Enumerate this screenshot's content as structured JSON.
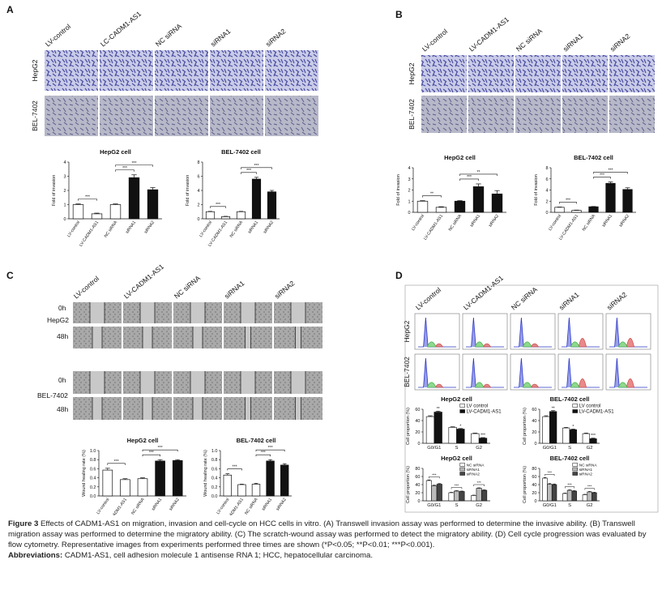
{
  "panels": [
    {
      "label": "A",
      "columns": [
        "LV-control",
        "LC-CADM1-AS1",
        "NC siRNA",
        "siRNA1",
        "siRNA2"
      ],
      "rows": [
        "HepG2",
        "BEL-7402"
      ]
    },
    {
      "label": "B",
      "columns": [
        "LV-control",
        "LV-CADM1-AS1",
        "NC siRNA",
        "siRNA1",
        "siRNA2"
      ],
      "rows": [
        "HepG2",
        "BEL-7402"
      ]
    },
    {
      "label": "C",
      "columns": [
        "LV-control",
        "LV-CADM1-AS1",
        "NC siRNA",
        "siRNA1",
        "siRNA2"
      ],
      "rows": [
        "0h",
        "HepG2",
        "48h",
        "0h",
        "BEL-7402",
        "48h"
      ]
    },
    {
      "label": "D",
      "columns": [
        "LV-control",
        "LV-CADM1-AS1",
        "NC siRNA",
        "siRNA1",
        "siRNA2"
      ],
      "rows": [
        "HepG2",
        "BEL-7402"
      ]
    }
  ],
  "chart_data": [
    {
      "type": "bar",
      "title": "HepG2 cell",
      "ylabel": "Fold of invasion",
      "categories": [
        "LV-control",
        "LV-CADM1-AS1",
        "NC siRNA",
        "siRNA1",
        "siRNA2"
      ],
      "values": [
        1,
        0.35,
        1,
        2.9,
        2.05
      ],
      "errors": [
        0.05,
        0.05,
        0.05,
        0.2,
        0.15
      ],
      "colors": [
        "#ffffff",
        "#ffffff",
        "#ffffff",
        "#111111",
        "#111111"
      ],
      "ylim": [
        0,
        4
      ],
      "yticks": [
        0,
        1,
        2,
        3,
        4
      ],
      "annotations": [
        "***",
        "***",
        "***"
      ]
    },
    {
      "type": "bar",
      "title": "BEL-7402 cell",
      "ylabel": "Fold of invasion",
      "categories": [
        "LV-control",
        "LV-CADM1-AS1",
        "NC siRNA",
        "siRNA1",
        "siRNA2"
      ],
      "values": [
        1,
        0.3,
        1,
        5.6,
        3.8
      ],
      "errors": [
        0.05,
        0.05,
        0.05,
        0.25,
        0.2
      ],
      "colors": [
        "#ffffff",
        "#ffffff",
        "#ffffff",
        "#111111",
        "#111111"
      ],
      "ylim": [
        0,
        8
      ],
      "yticks": [
        0,
        2,
        4,
        6,
        8
      ],
      "annotations": [
        "***",
        "***",
        "***"
      ]
    },
    {
      "type": "bar",
      "title": "HepG2 cell",
      "ylabel": "Fold of invasion",
      "categories": [
        "LV-control",
        "LV-CADM1-AS1",
        "NC siRNA",
        "siRNA1",
        "siRNA2"
      ],
      "values": [
        1,
        0.45,
        1,
        2.3,
        1.65
      ],
      "errors": [
        0.05,
        0.05,
        0.05,
        0.25,
        0.3
      ],
      "colors": [
        "#ffffff",
        "#ffffff",
        "#111111",
        "#111111",
        "#111111"
      ],
      "ylim": [
        0,
        4
      ],
      "yticks": [
        0,
        1,
        2,
        3,
        4
      ],
      "annotations": [
        "**",
        "***",
        "**"
      ]
    },
    {
      "type": "bar",
      "title": "BEL-7402 cell",
      "ylabel": "Fold of invasion",
      "categories": [
        "LV-control",
        "LV-CADM1-AS1",
        "NC siRNA",
        "siRNA1",
        "siRNA2"
      ],
      "values": [
        0.9,
        0.35,
        1,
        5.2,
        4.1
      ],
      "errors": [
        0.05,
        0.05,
        0.05,
        0.25,
        0.3
      ],
      "colors": [
        "#ffffff",
        "#ffffff",
        "#111111",
        "#111111",
        "#111111"
      ],
      "ylim": [
        0,
        8
      ],
      "yticks": [
        0,
        2,
        4,
        6,
        8
      ],
      "annotations": [
        "***",
        "***",
        "***"
      ]
    },
    {
      "type": "bar",
      "title": "HepG2 cell",
      "ylabel": "Wound healing rate (%)",
      "categories": [
        "LV-control",
        "LV-CADM1-AS1",
        "NC siRNA",
        "siRNA1",
        "siRNA2"
      ],
      "values": [
        0.57,
        0.36,
        0.38,
        0.77,
        0.78
      ],
      "errors": [
        0.04,
        0.02,
        0.02,
        0.03,
        0.02
      ],
      "colors": [
        "#ffffff",
        "#ffffff",
        "#ffffff",
        "#111111",
        "#111111"
      ],
      "ylim": [
        0,
        1.0
      ],
      "yticks": [
        {
          "value": 0,
          "label": "0.0"
        },
        0.2,
        0.4,
        0.6,
        0.8,
        {
          "value": 1.0,
          "label": "1.0"
        }
      ],
      "annotations": [
        "***",
        "***",
        "***"
      ]
    },
    {
      "type": "bar",
      "title": "BEL-7402 cell",
      "ylabel": "Wound healing rate (%)",
      "categories": [
        "LV-control",
        "LV-CADM1-AS1",
        "NC siRNA",
        "siRNA1",
        "siRNA2"
      ],
      "values": [
        0.46,
        0.25,
        0.26,
        0.77,
        0.68
      ],
      "errors": [
        0.03,
        0.01,
        0.02,
        0.03,
        0.03
      ],
      "colors": [
        "#ffffff",
        "#ffffff",
        "#ffffff",
        "#111111",
        "#111111"
      ],
      "ylim": [
        0,
        1.0
      ],
      "yticks": [
        {
          "value": 0,
          "label": "0.0"
        },
        0.2,
        0.4,
        0.6,
        0.8,
        {
          "value": 1.0,
          "label": "1.0"
        }
      ],
      "annotations": [
        "***",
        "***",
        "***"
      ]
    },
    {
      "type": "grouped-bar",
      "title": "HepG2 cell",
      "ylabel": "Cell proportion (%)",
      "categories": [
        "G0/G1",
        "S",
        "G2"
      ],
      "series": [
        {
          "name": "LV control",
          "color": "#ffffff",
          "values": [
            47,
            28,
            17
          ],
          "errors": [
            1.5,
            1,
            1
          ]
        },
        {
          "name": "LV-CADM1-AS1",
          "color": "#111111",
          "values": [
            55,
            25,
            9
          ],
          "errors": [
            1.5,
            1,
            1
          ]
        }
      ],
      "ylim": [
        0,
        60
      ],
      "yticks": [
        0,
        20,
        40,
        60
      ],
      "annotations": [
        "**",
        "*",
        "***"
      ]
    },
    {
      "type": "grouped-bar",
      "title": "BEL-7402 cell",
      "ylabel": "Cell proportion (%)",
      "categories": [
        "G0/G1",
        "S",
        "G2"
      ],
      "series": [
        {
          "name": "LV control",
          "color": "#ffffff",
          "values": [
            47,
            27,
            17
          ],
          "errors": [
            1.5,
            1,
            1
          ]
        },
        {
          "name": "LV-CADM1-AS1",
          "color": "#111111",
          "values": [
            56,
            24,
            8
          ],
          "errors": [
            1.5,
            1,
            1
          ]
        }
      ],
      "ylim": [
        0,
        60
      ],
      "yticks": [
        0,
        20,
        40,
        60
      ],
      "annotations": [
        "**",
        "*",
        "***"
      ]
    },
    {
      "type": "grouped-bar",
      "title": "HepG2 cell",
      "ylabel": "Cell proportion (%)",
      "categories": [
        "G0/G1",
        "S",
        "G2"
      ],
      "series": [
        {
          "name": "NC siRNA",
          "color": "#ffffff",
          "values": [
            50,
            20,
            13
          ],
          "errors": [
            1.5,
            1,
            1
          ]
        },
        {
          "name": "siRNA1",
          "color": "#bbbbbb",
          "values": [
            37,
            24,
            31
          ],
          "errors": [
            1.5,
            1,
            1
          ]
        },
        {
          "name": "siRNA2",
          "color": "#444444",
          "values": [
            41,
            23,
            26
          ],
          "errors": [
            1.5,
            1,
            1
          ]
        }
      ],
      "ylim": [
        0,
        80
      ],
      "yticks": [
        0,
        20,
        40,
        60,
        80
      ],
      "annotations": [
        "***",
        "***",
        "***"
      ]
    },
    {
      "type": "grouped-bar",
      "title": "BEL-7402 cell",
      "ylabel": "Cell proportion (%)",
      "categories": [
        "G0/G1",
        "S",
        "G2"
      ],
      "series": [
        {
          "name": "NC siRNA",
          "color": "#ffffff",
          "values": [
            56,
            18,
            15
          ],
          "errors": [
            1.5,
            1,
            1
          ]
        },
        {
          "name": "siRNA1",
          "color": "#bbbbbb",
          "values": [
            41,
            26,
            22
          ],
          "errors": [
            1.5,
            1,
            1
          ]
        },
        {
          "name": "siRNA2",
          "color": "#444444",
          "values": [
            40,
            24,
            20
          ],
          "errors": [
            1.5,
            1,
            1
          ]
        }
      ],
      "ylim": [
        0,
        80
      ],
      "yticks": [
        0,
        20,
        40,
        60,
        80
      ],
      "annotations": [
        "***",
        "***",
        "***"
      ]
    }
  ],
  "caption": {
    "figure": "Figure 3",
    "text": "Effects of CADM1-AS1 on migration, invasion and cell-cycle on HCC cells in vitro. (A) Transwell invasion assay was performed to determine the invasive ability. (B) Transwell migration assay was performed to determine the migratory ability. (C) The scratch-wound assay was performed to detect the migratory ability. (D) Cell cycle progression was evaluated by flow cytometry. Representative images from experiments performed three times are shown (*P<0.05; **P<0.01; ***P<0.001).",
    "abbrev_label": "Abbreviations:",
    "abbrev_text": "CADM1-AS1, cell adhesion molecule 1 antisense RNA 1; HCC, hepatocellular carcinoma."
  }
}
